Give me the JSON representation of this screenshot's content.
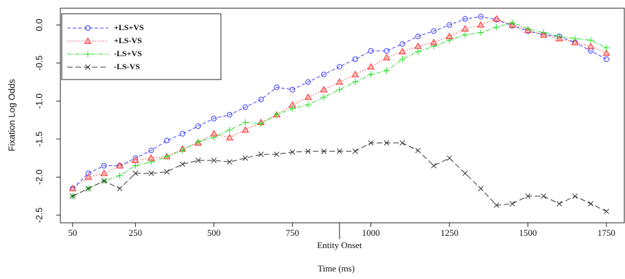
{
  "chart_data": {
    "type": "line",
    "x_label": "Time (ms)",
    "y_label": "Fixation Log Odds",
    "annotation": {
      "text": "Entity Onset",
      "x": 900
    },
    "x": [
      50,
      100,
      150,
      200,
      250,
      300,
      350,
      400,
      450,
      500,
      550,
      600,
      650,
      700,
      750,
      800,
      850,
      900,
      950,
      1000,
      1050,
      1100,
      1150,
      1200,
      1250,
      1300,
      1350,
      1400,
      1450,
      1500,
      1550,
      1600,
      1650,
      1700,
      1750
    ],
    "series": [
      {
        "name": "+LS+VS",
        "color": "#3a3aff",
        "marker": "circle",
        "dash": "5,3",
        "values": [
          -2.15,
          -1.95,
          -1.85,
          -1.85,
          -1.75,
          -1.65,
          -1.52,
          -1.43,
          -1.33,
          -1.23,
          -1.18,
          -1.08,
          -0.98,
          -0.82,
          -0.85,
          -0.75,
          -0.65,
          -0.55,
          -0.45,
          -0.34,
          -0.34,
          -0.25,
          -0.15,
          -0.08,
          0.0,
          0.08,
          0.11,
          0.07,
          -0.01,
          -0.08,
          -0.13,
          -0.15,
          -0.23,
          -0.34,
          -0.45
        ]
      },
      {
        "name": "+LS-VS",
        "color": "#ff2a2a",
        "marker": "triangle",
        "dash": "1.5,2.5",
        "values": [
          -2.15,
          -2.0,
          -1.95,
          -1.85,
          -1.78,
          -1.75,
          -1.73,
          -1.63,
          -1.55,
          -1.43,
          -1.48,
          -1.38,
          -1.28,
          -1.18,
          -1.05,
          -0.95,
          -0.85,
          -0.75,
          -0.65,
          -0.55,
          -0.43,
          -0.35,
          -0.28,
          -0.23,
          -0.15,
          -0.05,
          0.0,
          0.08,
          0.0,
          -0.07,
          -0.13,
          -0.18,
          -0.23,
          -0.28,
          -0.37
        ]
      },
      {
        "name": "-LS+VS",
        "color": "#22dd22",
        "marker": "plus",
        "dash": "6,2,1.5,2",
        "values": [
          -2.25,
          -2.15,
          -2.05,
          -1.98,
          -1.85,
          -1.8,
          -1.73,
          -1.65,
          -1.53,
          -1.48,
          -1.38,
          -1.28,
          -1.3,
          -1.18,
          -1.1,
          -1.05,
          -0.95,
          -0.85,
          -0.75,
          -0.65,
          -0.6,
          -0.45,
          -0.35,
          -0.28,
          -0.2,
          -0.13,
          -0.1,
          -0.03,
          0.03,
          -0.05,
          -0.1,
          -0.15,
          -0.18,
          -0.2,
          -0.3
        ]
      },
      {
        "name": "-LS-VS",
        "color": "#333333",
        "marker": "x",
        "dash": "8,4",
        "values": [
          -2.25,
          -2.15,
          -2.05,
          -2.15,
          -1.95,
          -1.95,
          -1.93,
          -1.83,
          -1.78,
          -1.78,
          -1.8,
          -1.75,
          -1.7,
          -1.7,
          -1.67,
          -1.66,
          -1.66,
          -1.66,
          -1.66,
          -1.55,
          -1.55,
          -1.55,
          -1.65,
          -1.85,
          -1.75,
          -1.95,
          -2.15,
          -2.37,
          -2.35,
          -2.25,
          -2.25,
          -2.35,
          -2.25,
          -2.35,
          -2.45
        ]
      }
    ],
    "xlim": [
      11,
      1807
    ],
    "xticks": [
      50,
      250,
      500,
      750,
      1000,
      1250,
      1500,
      1750
    ],
    "ylim": [
      -2.6,
      0.22
    ],
    "yticks": [
      {
        "value": 0,
        "label": "0.0"
      },
      -0.5,
      {
        "value": -1,
        "label": "-1.0"
      },
      -1.5,
      {
        "value": -2,
        "label": "-2.0"
      },
      -2.5
    ],
    "legend": "top-left"
  }
}
